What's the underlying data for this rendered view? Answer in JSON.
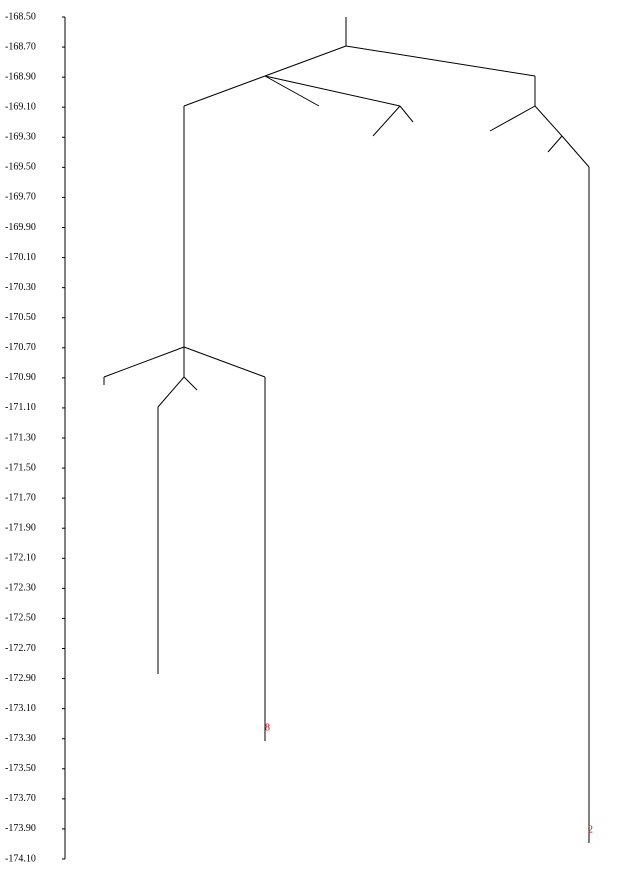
{
  "axis": {
    "ylim": [
      -168.5,
      -174.1
    ],
    "yticks": [
      {
        "value": -168.5,
        "label": "-168.50"
      },
      {
        "value": -168.7,
        "label": "-168.70"
      },
      {
        "value": -168.9,
        "label": "-168.90"
      },
      {
        "value": -169.1,
        "label": "-169.10"
      },
      {
        "value": -169.3,
        "label": "-169.30"
      },
      {
        "value": -169.5,
        "label": "-169.50"
      },
      {
        "value": -169.7,
        "label": "-169.70"
      },
      {
        "value": -169.9,
        "label": "-169.90"
      },
      {
        "value": -170.1,
        "label": "-170.10"
      },
      {
        "value": -170.3,
        "label": "-170.30"
      },
      {
        "value": -170.5,
        "label": "-170.50"
      },
      {
        "value": -170.7,
        "label": "-170.70"
      },
      {
        "value": -170.9,
        "label": "-170.90"
      },
      {
        "value": -171.1,
        "label": "-171.10"
      },
      {
        "value": -171.3,
        "label": "-171.30"
      },
      {
        "value": -171.5,
        "label": "-171.50"
      },
      {
        "value": -171.7,
        "label": "-171.70"
      },
      {
        "value": -171.9,
        "label": "-171.90"
      },
      {
        "value": -172.1,
        "label": "-172.10"
      },
      {
        "value": -172.3,
        "label": "-172.30"
      },
      {
        "value": -172.5,
        "label": "-172.50"
      },
      {
        "value": -172.7,
        "label": "-172.70"
      },
      {
        "value": -172.9,
        "label": "-172.90"
      },
      {
        "value": -173.1,
        "label": "-173.10"
      },
      {
        "value": -173.3,
        "label": "-173.30"
      },
      {
        "value": -173.5,
        "label": "-173.50"
      },
      {
        "value": -173.7,
        "label": "-173.70"
      },
      {
        "value": -173.9,
        "label": "-173.90"
      },
      {
        "value": -174.1,
        "label": "-174.10"
      }
    ]
  },
  "leaves": [
    {
      "label": "8"
    },
    {
      "label": "2"
    }
  ]
}
